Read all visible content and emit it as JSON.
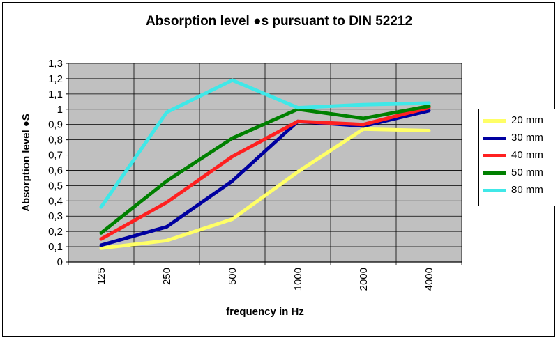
{
  "chart_data": {
    "type": "line",
    "title": "Absorption level ●s pursuant to DIN 52212",
    "xlabel": "frequency in Hz",
    "ylabel": "Absorption level ●S",
    "categories": [
      "125",
      "250",
      "500",
      "1000",
      "2000",
      "4000"
    ],
    "yticks": [
      "0",
      "0,1",
      "0,2",
      "0,3",
      "0,4",
      "0,5",
      "0,6",
      "0,7",
      "0,8",
      "0,9",
      "1",
      "1,1",
      "1,2",
      "1,3"
    ],
    "ylim": [
      0,
      1.3
    ],
    "grid": true,
    "legend_position": "right",
    "plot_background": "#c0c0c0",
    "series": [
      {
        "name": "20 mm",
        "color": "#ffff66",
        "values": [
          0.09,
          0.14,
          0.28,
          0.59,
          0.87,
          0.86
        ]
      },
      {
        "name": "30 mm",
        "color": "#0000a0",
        "values": [
          0.11,
          0.23,
          0.53,
          0.92,
          0.89,
          0.99
        ]
      },
      {
        "name": "40 mm",
        "color": "#ff2020",
        "values": [
          0.15,
          0.39,
          0.69,
          0.92,
          0.9,
          1.01
        ]
      },
      {
        "name": "50 mm",
        "color": "#008000",
        "values": [
          0.19,
          0.53,
          0.81,
          1.0,
          0.94,
          1.02
        ]
      },
      {
        "name": "80 mm",
        "color": "#40e8e8",
        "values": [
          0.36,
          0.98,
          1.19,
          1.01,
          1.03,
          1.04
        ]
      }
    ]
  }
}
